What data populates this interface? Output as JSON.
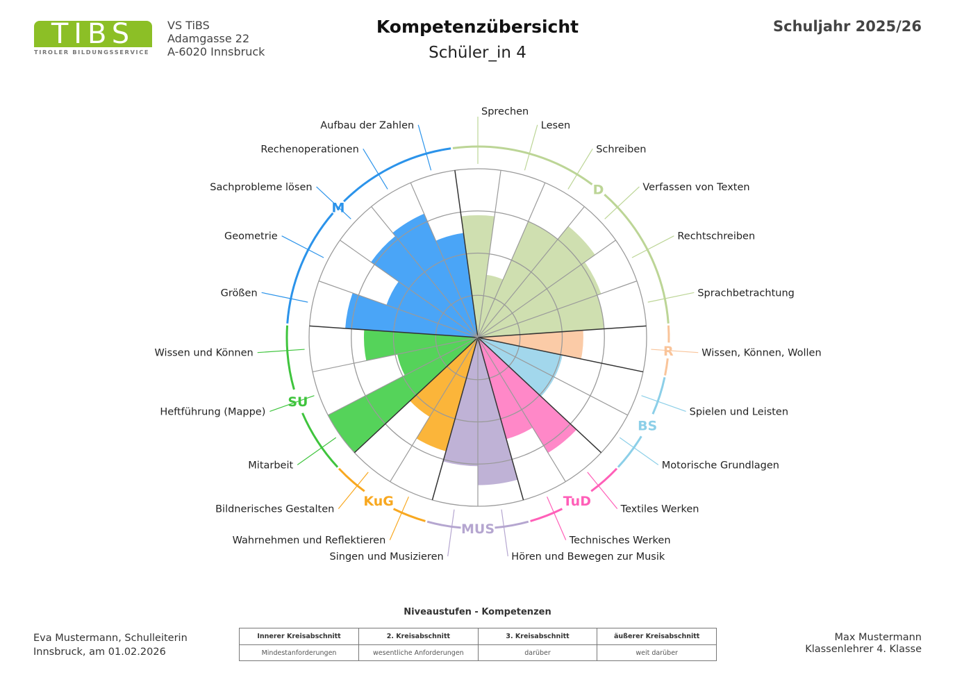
{
  "header": {
    "logo": {
      "letters": "TIBS",
      "subtitle": "TIROLER BILDUNGSSERVICE",
      "color": "#8cbf26"
    },
    "school": [
      "VS TiBS",
      "Adamgasse 22",
      "A-6020 Innsbruck"
    ],
    "title": "Kompetenzübersicht",
    "student": "Schüler_in 4",
    "school_year": "Schuljahr 2025/26"
  },
  "chart_data": {
    "type": "polar-area",
    "scale": {
      "min": 0,
      "max": 4,
      "rings": 4
    },
    "groups": [
      {
        "label": "D",
        "color": "#bcd596",
        "fill": "#cfdfb0",
        "items": [
          {
            "label": "Sprechen",
            "value": 2.9
          },
          {
            "label": "Lesen",
            "value": 1.5
          },
          {
            "label": "Schreiben",
            "value": 3.0
          },
          {
            "label": "Verfassen von Texten",
            "value": 3.4
          },
          {
            "label": "Rechtschreiben",
            "value": 3.1
          },
          {
            "label": "Sprachbetrachtung",
            "value": 3.0
          }
        ]
      },
      {
        "label": "R",
        "color": "#f9c49a",
        "fill": "#fbcba7",
        "items": [
          {
            "label": "Wissen, Können, Wollen",
            "value": 2.5
          }
        ]
      },
      {
        "label": "BS",
        "color": "#8ccfe8",
        "fill": "#a2d7ec",
        "items": [
          {
            "label": "Spielen und Leisten",
            "value": 2.05
          },
          {
            "label": "Motorische Grundlagen",
            "value": 2.05
          }
        ]
      },
      {
        "label": "TuD",
        "color": "#ff5fb8",
        "fill": "#ff88c8",
        "items": [
          {
            "label": "Textiles Werken",
            "value": 3.2
          },
          {
            "label": "Technisches Werken",
            "value": 2.5
          }
        ]
      },
      {
        "label": "MUS",
        "color": "#b5a6d0",
        "fill": "#bfb2d6",
        "items": [
          {
            "label": "Hören und Bewegen zur Musik",
            "value": 3.5
          },
          {
            "label": "Singen und Musizieren",
            "value": 3.05
          }
        ]
      },
      {
        "label": "KuG",
        "color": "#f8a820",
        "fill": "#fbb53a",
        "items": [
          {
            "label": "Wahrnehmen und Reflektieren",
            "value": 2.8
          },
          {
            "label": "Bildnerisches Gestalten",
            "value": 2.2
          }
        ]
      },
      {
        "label": "SU",
        "color": "#3fc43d",
        "fill": "#55d35a",
        "items": [
          {
            "label": "Mitarbeit",
            "value": 4.0
          },
          {
            "label": "Heftführung (Mappe)",
            "value": 1.95
          },
          {
            "label": "Wissen und Können",
            "value": 2.7
          }
        ]
      },
      {
        "label": "M",
        "color": "#2b93ea",
        "fill": "#4aa5f7",
        "items": [
          {
            "label": "Größen",
            "value": 3.15
          },
          {
            "label": "Geometrie",
            "value": 2.3
          },
          {
            "label": "Sachprobleme lösen",
            "value": 3.1
          },
          {
            "label": "Rechenoperationen",
            "value": 3.2
          },
          {
            "label": "Aufbau der Zahlen",
            "value": 2.5
          }
        ]
      }
    ]
  },
  "legend": {
    "title": "Niveaustufen - Kompetenzen",
    "headers": [
      "Innerer Kreisabschnitt",
      "2. Kreisabschnitt",
      "3. Kreisabschnitt",
      "äußerer Kreisabschnitt"
    ],
    "descriptions": [
      "Mindestanforderungen",
      "wesentliche Anforderungen",
      "darüber",
      "weit darüber"
    ]
  },
  "footer": {
    "left": [
      "Eva Mustermann, Schulleiterin",
      "Innsbruck, am 01.02.2026"
    ],
    "right": [
      "Max Mustermann",
      "Klassenlehrer 4. Klasse"
    ]
  }
}
